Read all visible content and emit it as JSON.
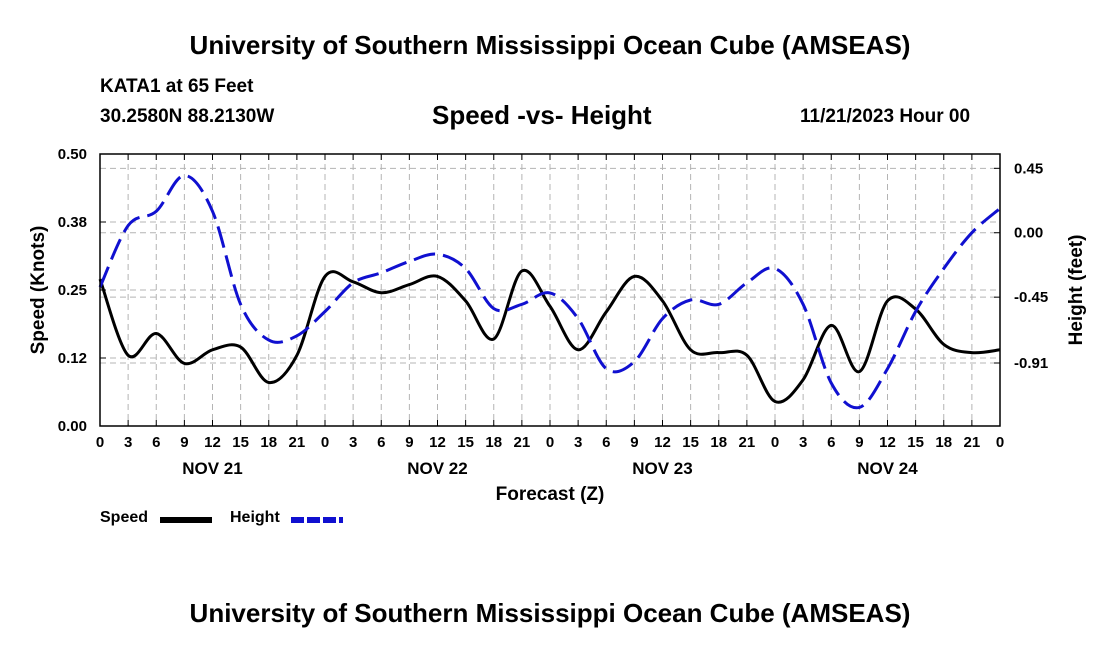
{
  "header": {
    "title": "University of Southern Mississippi Ocean Cube (AMSEAS)",
    "station": "KATA1 at 65 Feet",
    "coords": "30.2580N  88.2130W",
    "chart_title": "Speed -vs- Height",
    "datetime": "11/21/2023 Hour 00"
  },
  "footer": {
    "title": "University of Southern Mississippi Ocean Cube (AMSEAS)"
  },
  "legend": {
    "speed": "Speed",
    "height": "Height"
  },
  "colors": {
    "speed": "#000000",
    "height": "#1010d0",
    "grid": "#b4b4b4"
  },
  "chart_data": {
    "type": "line",
    "title": "Speed -vs- Height",
    "xlabel": "Forecast (Z)",
    "ylabel": "Speed (Knots)",
    "y2label": "Height (feet)",
    "xlim": [
      0,
      96
    ],
    "ylim": [
      0,
      0.5
    ],
    "y2lim": [
      -1.35,
      0.55
    ],
    "y_ticks": [
      "0.00",
      "0.12",
      "0.25",
      "0.38",
      "0.50"
    ],
    "y_tick_values": [
      0,
      0.125,
      0.25,
      0.375,
      0.5
    ],
    "y2_ticks": [
      "-0.91",
      "-0.45",
      "0.00",
      "0.45"
    ],
    "y2_tick_values": [
      -0.91,
      -0.45,
      0,
      0.45
    ],
    "x_tick_labels": [
      "0",
      "3",
      "6",
      "9",
      "12",
      "15",
      "18",
      "21",
      "0",
      "3",
      "6",
      "9",
      "12",
      "15",
      "18",
      "21",
      "0",
      "3",
      "6",
      "9",
      "12",
      "15",
      "18",
      "21",
      "0",
      "3",
      "6",
      "9",
      "12",
      "15",
      "18",
      "21",
      "0"
    ],
    "day_labels": [
      {
        "label": "NOV 21",
        "hour": 12
      },
      {
        "label": "NOV 22",
        "hour": 36
      },
      {
        "label": "NOV 23",
        "hour": 60
      },
      {
        "label": "NOV 24",
        "hour": 84
      }
    ],
    "grid": true,
    "series": [
      {
        "name": "Speed",
        "axis": "left",
        "style": "solid",
        "x": [
          0,
          3,
          6,
          9,
          12,
          15,
          18,
          21,
          24,
          27,
          30,
          33,
          36,
          39,
          42,
          45,
          48,
          51,
          54,
          57,
          60,
          63,
          66,
          69,
          72,
          75,
          78,
          81,
          84,
          87,
          90,
          93,
          96
        ],
        "values": [
          0.27,
          0.13,
          0.17,
          0.115,
          0.14,
          0.145,
          0.08,
          0.13,
          0.275,
          0.265,
          0.245,
          0.26,
          0.275,
          0.23,
          0.16,
          0.285,
          0.22,
          0.14,
          0.21,
          0.275,
          0.23,
          0.14,
          0.135,
          0.13,
          0.045,
          0.085,
          0.185,
          0.1,
          0.23,
          0.215,
          0.15,
          0.135,
          0.14
        ]
      },
      {
        "name": "Height",
        "axis": "right",
        "style": "dashed",
        "x": [
          0,
          3,
          6,
          9,
          12,
          15,
          18,
          21,
          24,
          27,
          30,
          33,
          36,
          39,
          42,
          45,
          48,
          51,
          54,
          57,
          60,
          63,
          66,
          69,
          72,
          75,
          78,
          81,
          84,
          87,
          90,
          93,
          96
        ],
        "values": [
          -0.38,
          0.05,
          0.15,
          0.4,
          0.15,
          -0.5,
          -0.75,
          -0.72,
          -0.55,
          -0.35,
          -0.28,
          -0.2,
          -0.15,
          -0.25,
          -0.53,
          -0.5,
          -0.42,
          -0.6,
          -0.95,
          -0.9,
          -0.6,
          -0.47,
          -0.5,
          -0.35,
          -0.25,
          -0.5,
          -1.05,
          -1.22,
          -0.95,
          -0.55,
          -0.25,
          0.0,
          0.17
        ]
      }
    ]
  }
}
